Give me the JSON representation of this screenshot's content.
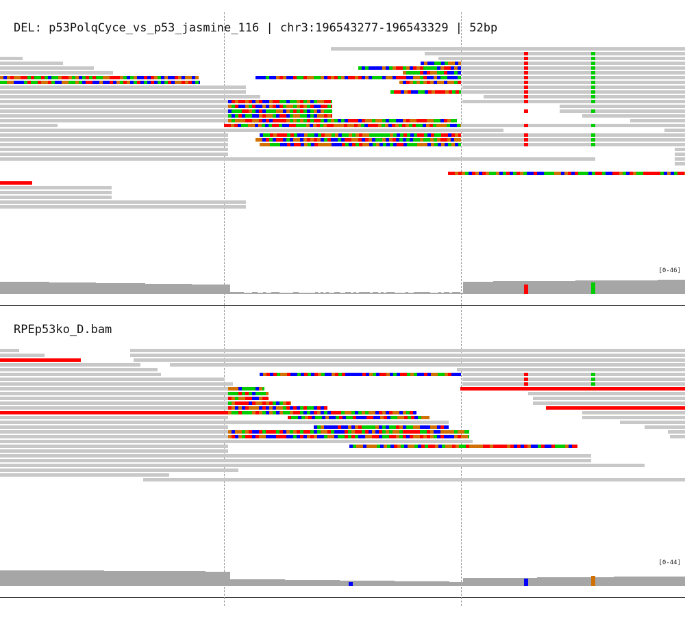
{
  "panels": [
    {
      "title": "DEL: p53PolqCyce_vs_p53_jasmine_116 | chr3:196543277-196543329 | 52bp",
      "range": "[0-46]"
    },
    {
      "title": "RPEp53ko_D.bam",
      "range": "[0-44]"
    }
  ],
  "colors": {
    "read": "#c8c8c8",
    "coverage": "#a6a6a6",
    "A": "#00cc00",
    "C": "#0000ff",
    "G": "#d17105",
    "T": "#ff0000",
    "insertion": "#e8e8e8"
  }
}
